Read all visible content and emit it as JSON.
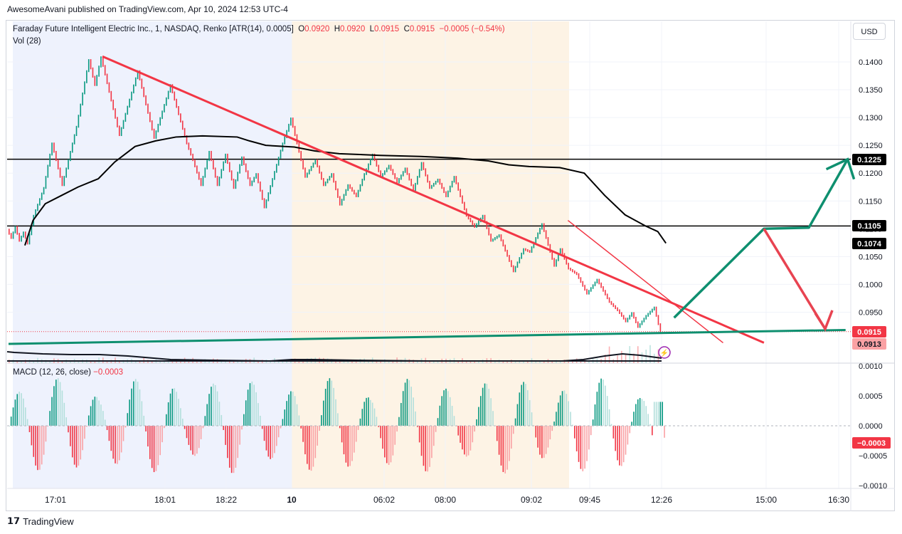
{
  "header": {
    "publisher": "AwesomeAvani published on TradingView.com, Apr 10, 2024 12:53 UTC-4"
  },
  "legend": {
    "symbol": "Faraday Future Intelligent Electric Inc., 1, NASDAQ, Renko [ATR(14), 0.0005]",
    "o_label": "O",
    "o_value": "0.0920",
    "h_label": "H",
    "h_value": "0.0920",
    "l_label": "L",
    "l_value": "0.0915",
    "c_label": "C",
    "c_value": "0.0915",
    "change": "−0.0005 (−0.54%)",
    "vol": "Vol (28)"
  },
  "macd_legend": {
    "label": "MACD (12, 26, close)",
    "value": "−0.0003"
  },
  "currency": "USD",
  "footer": {
    "brand": "TradingView"
  },
  "colors": {
    "up": "#089981",
    "down": "#f23645",
    "up_light": "#b2dfdb",
    "down_light": "#faa1a4",
    "session_pre": "#eef2fd",
    "session_post": "#fdf3e5",
    "arrow_up": "#0e8f6f",
    "arrow_down": "#e84351"
  },
  "chart_data": [
    {
      "type": "renko",
      "title": "Faraday Future Intelligent Electric Inc., 1, NASDAQ, Renko [ATR(14), 0.0005]",
      "ylim": [
        0.0905,
        0.1445
      ],
      "y_ticks": [
        "0.1400",
        "0.1350",
        "0.1300",
        "0.1250",
        "0.1200",
        "0.1150",
        "0.1100",
        "0.1050",
        "0.1000",
        "0.0950"
      ],
      "x_ticks": [
        "17:01",
        "18:01",
        "18:22",
        "10",
        "06:02",
        "08:00",
        "09:02",
        "09:45",
        "12:26",
        "15:00",
        "16:30"
      ],
      "price_path": [
        {
          "i": 0,
          "y": 0.11
        },
        {
          "i": 2,
          "y": 0.1085
        },
        {
          "i": 4,
          "y": 0.1105
        },
        {
          "i": 6,
          "y": 0.108
        },
        {
          "i": 8,
          "y": 0.1095
        },
        {
          "i": 10,
          "y": 0.1075
        },
        {
          "i": 13,
          "y": 0.1125
        },
        {
          "i": 18,
          "y": 0.1175
        },
        {
          "i": 22,
          "y": 0.1255
        },
        {
          "i": 27,
          "y": 0.118
        },
        {
          "i": 34,
          "y": 0.1285
        },
        {
          "i": 40,
          "y": 0.1405
        },
        {
          "i": 43,
          "y": 0.136
        },
        {
          "i": 46,
          "y": 0.141
        },
        {
          "i": 55,
          "y": 0.127
        },
        {
          "i": 64,
          "y": 0.1385
        },
        {
          "i": 72,
          "y": 0.1265
        },
        {
          "i": 80,
          "y": 0.136
        },
        {
          "i": 88,
          "y": 0.1255
        },
        {
          "i": 91,
          "y": 0.1225
        },
        {
          "i": 95,
          "y": 0.118
        },
        {
          "i": 99,
          "y": 0.124
        },
        {
          "i": 103,
          "y": 0.118
        },
        {
          "i": 107,
          "y": 0.1235
        },
        {
          "i": 111,
          "y": 0.1175
        },
        {
          "i": 115,
          "y": 0.123
        },
        {
          "i": 119,
          "y": 0.118
        },
        {
          "i": 122,
          "y": 0.12
        },
        {
          "i": 126,
          "y": 0.114
        },
        {
          "i": 135,
          "y": 0.1255
        },
        {
          "i": 139,
          "y": 0.13
        },
        {
          "i": 146,
          "y": 0.1195
        },
        {
          "i": 151,
          "y": 0.1225
        },
        {
          "i": 155,
          "y": 0.118
        },
        {
          "i": 159,
          "y": 0.12
        },
        {
          "i": 163,
          "y": 0.1145
        },
        {
          "i": 167,
          "y": 0.118
        },
        {
          "i": 171,
          "y": 0.116
        },
        {
          "i": 175,
          "y": 0.12
        },
        {
          "i": 179,
          "y": 0.1235
        },
        {
          "i": 183,
          "y": 0.1195
        },
        {
          "i": 187,
          "y": 0.1215
        },
        {
          "i": 191,
          "y": 0.1185
        },
        {
          "i": 195,
          "y": 0.121
        },
        {
          "i": 199,
          "y": 0.117
        },
        {
          "i": 203,
          "y": 0.122
        },
        {
          "i": 207,
          "y": 0.1175
        },
        {
          "i": 211,
          "y": 0.119
        },
        {
          "i": 215,
          "y": 0.116
        },
        {
          "i": 219,
          "y": 0.1195
        },
        {
          "i": 225,
          "y": 0.1125
        },
        {
          "i": 229,
          "y": 0.1105
        },
        {
          "i": 233,
          "y": 0.1125
        },
        {
          "i": 237,
          "y": 0.108
        },
        {
          "i": 241,
          "y": 0.109
        },
        {
          "i": 248,
          "y": 0.1025
        },
        {
          "i": 253,
          "y": 0.1065
        },
        {
          "i": 256,
          "y": 0.106
        },
        {
          "i": 262,
          "y": 0.111
        },
        {
          "i": 268,
          "y": 0.1035
        },
        {
          "i": 271,
          "y": 0.1065
        },
        {
          "i": 275,
          "y": 0.103
        },
        {
          "i": 279,
          "y": 0.102
        },
        {
          "i": 284,
          "y": 0.0985
        },
        {
          "i": 289,
          "y": 0.101
        },
        {
          "i": 295,
          "y": 0.097
        },
        {
          "i": 299,
          "y": 0.0955
        },
        {
          "i": 303,
          "y": 0.0935
        },
        {
          "i": 306,
          "y": 0.095
        },
        {
          "i": 309,
          "y": 0.0925
        },
        {
          "i": 313,
          "y": 0.0945
        },
        {
          "i": 317,
          "y": 0.096
        },
        {
          "i": 320,
          "y": 0.0915
        }
      ],
      "vwap_path": [
        {
          "i": 8,
          "y": 0.107
        },
        {
          "i": 12,
          "y": 0.1115
        },
        {
          "i": 18,
          "y": 0.1145
        },
        {
          "i": 26,
          "y": 0.116
        },
        {
          "i": 34,
          "y": 0.1175
        },
        {
          "i": 44,
          "y": 0.119
        },
        {
          "i": 52,
          "y": 0.122
        },
        {
          "i": 62,
          "y": 0.1248
        },
        {
          "i": 72,
          "y": 0.1258
        },
        {
          "i": 82,
          "y": 0.1265
        },
        {
          "i": 95,
          "y": 0.1267
        },
        {
          "i": 112,
          "y": 0.1265
        },
        {
          "i": 118,
          "y": 0.1258
        },
        {
          "i": 126,
          "y": 0.125
        },
        {
          "i": 140,
          "y": 0.1247
        },
        {
          "i": 150,
          "y": 0.124
        },
        {
          "i": 162,
          "y": 0.1235
        },
        {
          "i": 182,
          "y": 0.1232
        },
        {
          "i": 202,
          "y": 0.123
        },
        {
          "i": 220,
          "y": 0.1227
        },
        {
          "i": 235,
          "y": 0.1222
        },
        {
          "i": 245,
          "y": 0.1215
        },
        {
          "i": 255,
          "y": 0.1212
        },
        {
          "i": 270,
          "y": 0.121
        },
        {
          "i": 282,
          "y": 0.12
        },
        {
          "i": 292,
          "y": 0.116
        },
        {
          "i": 302,
          "y": 0.1125
        },
        {
          "i": 312,
          "y": 0.1105
        },
        {
          "i": 318,
          "y": 0.1095
        },
        {
          "i": 322,
          "y": 0.1074
        }
      ],
      "horizontal_levels": [
        0.1225,
        0.1105
      ],
      "price_labels": [
        {
          "value": "0.1225",
          "style": "black"
        },
        {
          "value": "0.1105",
          "style": "black"
        },
        {
          "value": "0.1074",
          "style": "black"
        },
        {
          "value": "0.0915",
          "style": "red"
        },
        {
          "value": "0.0913",
          "style": "lightred"
        }
      ],
      "trendlines": [
        {
          "name": "downtrend",
          "color": "#f23645",
          "from": {
            "i": 46,
            "y": 0.141
          },
          "to": {
            "i": 370,
            "y": 0.0895
          }
        },
        {
          "name": "channel",
          "color": "#f23645",
          "from": {
            "i": 274,
            "y": 0.1115
          },
          "to": {
            "i": 350,
            "y": 0.0895
          }
        },
        {
          "name": "support",
          "color": "#0e8f6f",
          "from": {
            "i": 0,
            "y": 0.0893
          },
          "to": {
            "i": 410,
            "y": 0.0918
          }
        }
      ],
      "projection_up": [
        {
          "i": 326,
          "y": 0.094
        },
        {
          "i": 370,
          "y": 0.11
        },
        {
          "i": 392,
          "y": 0.1102
        },
        {
          "i": 411,
          "y": 0.1225
        }
      ],
      "projection_down": [
        {
          "i": 370,
          "y": 0.11
        },
        {
          "i": 400,
          "y": 0.092
        }
      ]
    },
    {
      "type": "bar",
      "title": "MACD (12, 26, close)",
      "ylim": [
        -0.0011,
        0.0011
      ],
      "y_ticks": [
        "0.0010",
        "0.0005",
        "0.0000",
        "−0.0005",
        "−0.0010"
      ],
      "current_value": "−0.0003"
    }
  ]
}
